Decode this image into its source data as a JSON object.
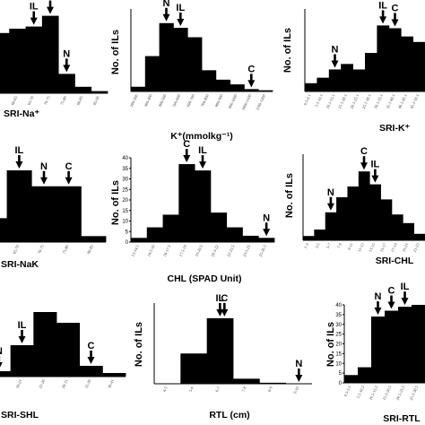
{
  "chart_data": [
    {
      "type": "bar",
      "categories": [
        "50-55",
        "60-65",
        "65-70",
        "70-75",
        "75-80",
        "80-85",
        "85-90"
      ],
      "values": [
        28,
        30,
        31,
        36,
        9,
        3,
        1
      ],
      "ylim": [
        0,
        40
      ],
      "xlabel": "SRI-Na⁺",
      "ylabel": "",
      "markers": [
        {
          "label": "IL",
          "index": 2
        },
        {
          "label": "C",
          "index": 3
        },
        {
          "label": "N",
          "index": 4
        }
      ]
    },
    {
      "type": "bar",
      "categories": [
        "200-300",
        "300-400",
        "400-500",
        "500-600",
        "600-700",
        "700-800",
        "800-900",
        "900-1000",
        "1000-1100",
        "1100-1200"
      ],
      "values": [
        2,
        15,
        29,
        27,
        23,
        9,
        5,
        3,
        1,
        0.5
      ],
      "ylim": [
        0,
        35
      ],
      "xlabel": "K⁺(mmolkg⁻¹)",
      "ylabel": "No. of ILs",
      "markers": [
        {
          "label": "N",
          "index": 2
        },
        {
          "label": "IL",
          "index": 3
        },
        {
          "label": "C",
          "index": 8
        }
      ]
    },
    {
      "type": "bar",
      "categories": [
        "0.5-0.1",
        "5.1-10.1",
        "10.1-15.1",
        "15.1-20.1",
        "20.1-25.1",
        "25.1-30.1",
        "30.1-35.1",
        "35.1-40.1",
        "40.1-45.1",
        "45.1-50.1"
      ],
      "values": [
        3,
        5,
        8,
        10,
        8,
        14,
        24,
        23,
        20,
        18
      ],
      "ylim": [
        0,
        30
      ],
      "xlabel": "SRI-K⁺",
      "ylabel": "No. of ILs",
      "markers": [
        {
          "label": "N",
          "index": 2
        },
        {
          "label": "IL",
          "index": 6
        },
        {
          "label": "C",
          "index": 7
        }
      ]
    },
    {
      "type": "bar",
      "categories": [
        "60-65",
        "65-70",
        "70-75",
        "75-80",
        "80-85"
      ],
      "values": [
        12,
        36,
        28,
        28,
        3
      ],
      "ylim": [
        0,
        45
      ],
      "xlabel": "SRI-NaK",
      "ylabel": "",
      "markers": [
        {
          "label": "IL",
          "index": 1
        },
        {
          "label": "N",
          "index": 2
        },
        {
          "label": "C",
          "index": 3
        }
      ]
    },
    {
      "type": "bar",
      "categories": [
        "13-14.5",
        "14.5-16",
        "16-17.5",
        "17.5-19",
        "19-20.5",
        "20.5-22",
        "22-23.5",
        "23.5-25",
        "25-26.5"
      ],
      "values": [
        2,
        7,
        13,
        37,
        34,
        14,
        7,
        3,
        2
      ],
      "ylim": [
        0,
        40
      ],
      "yticks": [
        0,
        5,
        10,
        15,
        20,
        25,
        30,
        35,
        40
      ],
      "xlabel": "CHL (SPAD Unit)",
      "ylabel": "No. of ILs",
      "markers": [
        {
          "label": "C",
          "index": 3
        },
        {
          "label": "IL",
          "index": 4
        },
        {
          "label": "N",
          "index": 8
        }
      ]
    },
    {
      "type": "bar",
      "categories": [
        "1-3",
        "3-5",
        "5-7",
        "7-9",
        "9-11",
        "11-13",
        "13-15",
        "15-17",
        "17-19",
        "19-21",
        "21-23"
      ],
      "values": [
        2,
        5,
        13,
        20,
        25,
        32,
        26,
        19,
        12,
        8,
        3
      ],
      "ylim": [
        0,
        40
      ],
      "xlabel": "SRI-CHL",
      "ylabel": "No. of ILs",
      "markers": [
        {
          "label": "N",
          "index": 2
        },
        {
          "label": "C",
          "index": 5
        },
        {
          "label": "IL",
          "index": 6
        }
      ]
    },
    {
      "type": "bar",
      "categories": [
        "11-16",
        "16-21",
        "21-26",
        "26-31",
        "31-36",
        "36-41"
      ],
      "values": [
        6,
        35,
        72,
        60,
        12,
        4
      ],
      "ylim": [
        0,
        80
      ],
      "xlabel": "SRI-SHL",
      "ylabel": "",
      "markers": [
        {
          "label": "N",
          "index": 0
        },
        {
          "label": "IL",
          "index": 1
        },
        {
          "label": "C",
          "index": 4
        }
      ]
    },
    {
      "type": "bar",
      "categories": [
        "4-5",
        "5-6",
        "6-7",
        "7-8",
        "8-9",
        "9-10"
      ],
      "values": [
        0,
        30,
        65,
        5,
        1,
        0
      ],
      "ylim": [
        0,
        80
      ],
      "xlabel": "RTL (cm)",
      "ylabel": "No. of ILs",
      "markers": [
        {
          "label": "IL",
          "index": 2
        },
        {
          "label": "C",
          "index": 2
        },
        {
          "label": "N",
          "index": 5
        }
      ]
    },
    {
      "type": "bar",
      "categories": [
        "0.5-5.5",
        "5.5-10.5",
        "10.5-15.5",
        "15.5-20.5",
        "20.5-25.5",
        "25.5-30.5"
      ],
      "values": [
        4,
        8,
        34,
        37,
        39,
        40
      ],
      "ylim": [
        0,
        40
      ],
      "yticks": [
        0,
        5,
        10,
        15,
        20,
        25,
        30,
        35,
        40
      ],
      "xlabel": "SRI-RTL",
      "ylabel": "No. of ILs",
      "markers": [
        {
          "label": "N",
          "index": 2
        },
        {
          "label": "C",
          "index": 3
        },
        {
          "label": "IL",
          "index": 4
        }
      ]
    }
  ]
}
